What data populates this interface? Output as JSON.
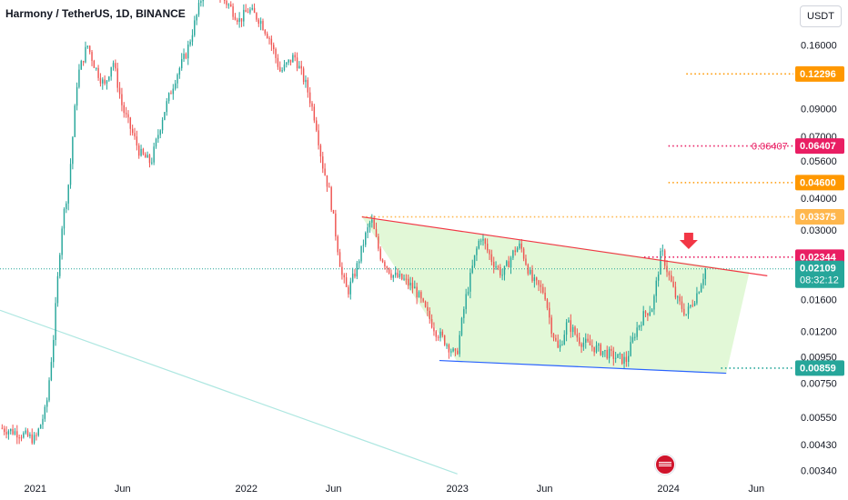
{
  "header": {
    "symbol_title": "Harmony / TetherUS, 1D, BINANCE",
    "currency_button": "USDT"
  },
  "colors": {
    "up": "#26a69a",
    "down": "#ef5350",
    "channel_fill": "#dff7d3",
    "upper_line": "#f23645",
    "lower_line": "#2962ff",
    "orange": "#ff9800",
    "pink": "#e91e63",
    "teal": "#26a69a",
    "cyan_light": "#aee7e1"
  },
  "chart_data": {
    "type": "candlestick",
    "title": "Harmony / TetherUS, 1D, BINANCE",
    "x_axis": {
      "ticks": [
        "2021",
        "Jun",
        "2022",
        "Jun",
        "2023",
        "Jun",
        "2024",
        "Jun"
      ]
    },
    "y_axis": {
      "scale": "log",
      "range": [
        0.0032,
        0.24
      ],
      "ticks": [
        "0.16000",
        "0.09000",
        "0.07000",
        "0.05600",
        "0.04000",
        "0.03000",
        "0.01600",
        "0.01200",
        "0.00950",
        "0.00750",
        "0.00550",
        "0.00430",
        "0.00340"
      ]
    },
    "price_series": [
      [
        "2020-11-01",
        0.005
      ],
      [
        "2020-12-01",
        0.0048
      ],
      [
        "2021-01-01",
        0.0045
      ],
      [
        "2021-01-20",
        0.006
      ],
      [
        "2021-02-01",
        0.011
      ],
      [
        "2021-02-15",
        0.03
      ],
      [
        "2021-03-01",
        0.048
      ],
      [
        "2021-03-15",
        0.12
      ],
      [
        "2021-04-01",
        0.16
      ],
      [
        "2021-04-15",
        0.13
      ],
      [
        "2021-05-01",
        0.11
      ],
      [
        "2021-05-15",
        0.14
      ],
      [
        "2021-06-01",
        0.09
      ],
      [
        "2021-06-20",
        0.07
      ],
      [
        "2021-07-01",
        0.06
      ],
      [
        "2021-07-20",
        0.055
      ],
      [
        "2021-08-10",
        0.085
      ],
      [
        "2021-09-01",
        0.12
      ],
      [
        "2021-09-20",
        0.15
      ],
      [
        "2021-10-10",
        0.22
      ],
      [
        "2021-10-25",
        0.3
      ],
      [
        "2021-11-10",
        0.26
      ],
      [
        "2021-12-01",
        0.23
      ],
      [
        "2021-12-20",
        0.2
      ],
      [
        "2022-01-05",
        0.22
      ],
      [
        "2022-01-25",
        0.2
      ],
      [
        "2022-02-10",
        0.17
      ],
      [
        "2022-03-01",
        0.125
      ],
      [
        "2022-03-25",
        0.145
      ],
      [
        "2022-04-15",
        0.11
      ],
      [
        "2022-05-01",
        0.08
      ],
      [
        "2022-05-12",
        0.055
      ],
      [
        "2022-05-25",
        0.042
      ],
      [
        "2022-06-15",
        0.02
      ],
      [
        "2022-06-25",
        0.017
      ],
      [
        "2022-07-10",
        0.021
      ],
      [
        "2022-07-25",
        0.028
      ],
      [
        "2022-08-05",
        0.033
      ],
      [
        "2022-08-20",
        0.024
      ],
      [
        "2022-09-10",
        0.02
      ],
      [
        "2022-10-01",
        0.019
      ],
      [
        "2022-10-20",
        0.0175
      ],
      [
        "2022-11-10",
        0.014
      ],
      [
        "2022-11-25",
        0.012
      ],
      [
        "2022-12-10",
        0.011
      ],
      [
        "2022-12-30",
        0.0095
      ],
      [
        "2023-01-15",
        0.016
      ],
      [
        "2023-02-01",
        0.024
      ],
      [
        "2023-02-10",
        0.0285
      ],
      [
        "2023-03-01",
        0.023
      ],
      [
        "2023-03-20",
        0.02
      ],
      [
        "2023-04-10",
        0.025
      ],
      [
        "2023-04-20",
        0.026
      ],
      [
        "2023-05-10",
        0.019
      ],
      [
        "2023-06-01",
        0.017
      ],
      [
        "2023-06-12",
        0.0125
      ],
      [
        "2023-06-25",
        0.01
      ],
      [
        "2023-07-10",
        0.013
      ],
      [
        "2023-08-01",
        0.011
      ],
      [
        "2023-08-20",
        0.0105
      ],
      [
        "2023-09-10",
        0.01
      ],
      [
        "2023-10-01",
        0.0095
      ],
      [
        "2023-10-20",
        0.0092
      ],
      [
        "2023-11-05",
        0.012
      ],
      [
        "2023-11-20",
        0.014
      ],
      [
        "2023-12-05",
        0.015
      ],
      [
        "2023-12-20",
        0.025
      ],
      [
        "2024-01-01",
        0.02
      ],
      [
        "2024-01-15",
        0.016
      ],
      [
        "2024-02-01",
        0.014
      ],
      [
        "2024-02-20",
        0.017
      ],
      [
        "2024-03-05",
        0.021
      ]
    ],
    "channel": {
      "upper_line": {
        "from": [
          "2022-07-20",
          0.03375
        ],
        "to": [
          "2024-06-20",
          0.0198
        ]
      },
      "lower_line": {
        "from": [
          "2022-12-01",
          0.0092
        ],
        "to": [
          "2024-04-10",
          0.0082
        ]
      },
      "fill_polygon": [
        [
          "2022-07-20",
          0.03375
        ],
        [
          "2024-05-20",
          0.0205
        ],
        [
          "2024-04-10",
          0.0082
        ],
        [
          "2023-01-01",
          0.0091
        ]
      ]
    },
    "diagonal_line": {
      "from": [
        "2020-11-01",
        0.0145
      ],
      "to": [
        "2023-01-01",
        0.0033
      ]
    },
    "levels": [
      {
        "price": 0.12296,
        "label": "0.12296",
        "color": "#ff9800",
        "start": "2024-02-01",
        "style": "dotted"
      },
      {
        "price": 0.06407,
        "label": "0.06407",
        "color": "#e91e63",
        "start": "2024-01-01",
        "style": "dotted",
        "inline_label": "0.06407"
      },
      {
        "price": 0.046,
        "label": "0.04600",
        "color": "#ff9800",
        "start": "2024-01-01",
        "style": "dotted"
      },
      {
        "price": 0.03375,
        "label": "0.03375",
        "color": "#ffb74d",
        "start": "2022-07-20",
        "style": "dotted"
      },
      {
        "price": 0.02344,
        "label": "0.02344",
        "color": "#e91e63",
        "start": "2023-11-20",
        "style": "dotted"
      },
      {
        "price": 0.02109,
        "label": "0.02109",
        "sublabel": "08:32:12",
        "color": "#26a69a",
        "start": "2020-11-01",
        "style": "dotted",
        "is_current": true
      },
      {
        "price": 0.00859,
        "label": "0.00859",
        "color": "#26a69a",
        "start": "2024-04-01",
        "style": "dotted"
      }
    ],
    "arrow_marker": {
      "date": "2024-02-05",
      "price": 0.0265,
      "direction": "down",
      "color": "#f23645"
    }
  }
}
